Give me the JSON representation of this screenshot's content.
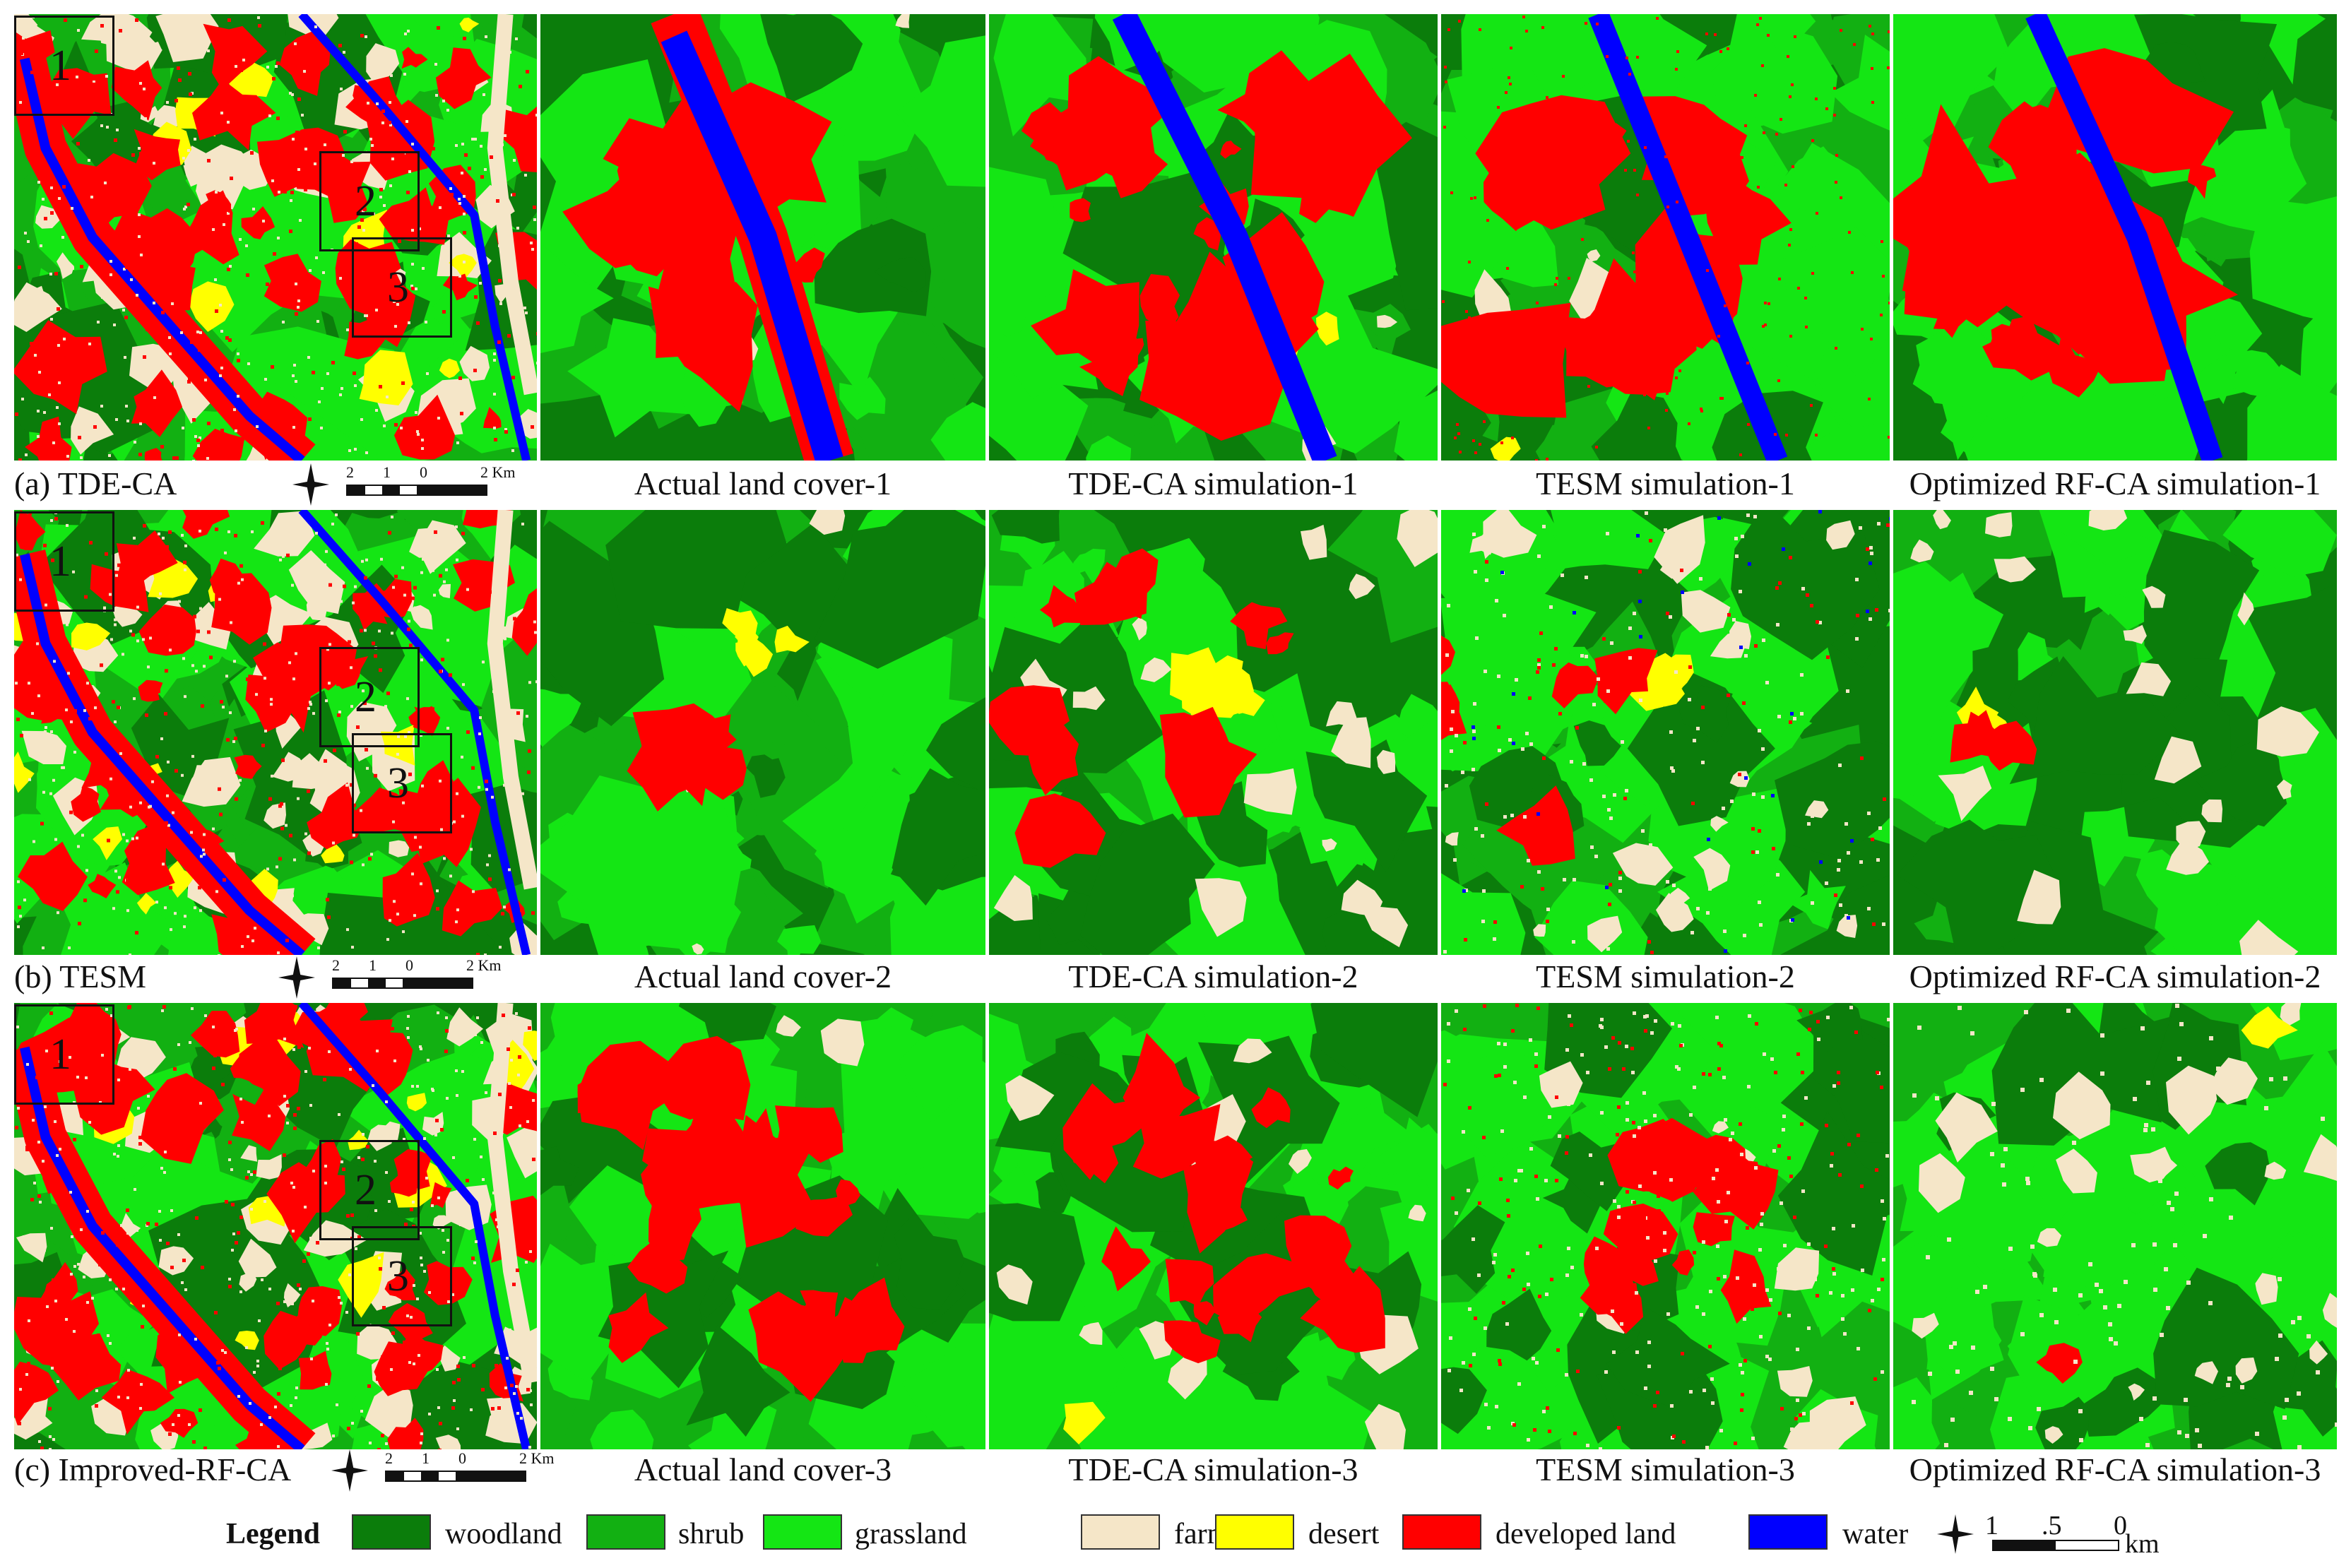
{
  "colors": {
    "woodland": "#0b7d0b",
    "shrub": "#12b012",
    "grassland": "#14e614",
    "farmland": "#f5e6c8",
    "desert": "#ffff00",
    "developed_land": "#ff0000",
    "water": "#0000ff"
  },
  "rows": [
    {
      "overview_caption": "(a) TDE-CA",
      "panels": [
        "Actual land cover-1",
        "TDE-CA simulation-1",
        "TESM simulation-1",
        "Optimized RF-CA simulation-1"
      ]
    },
    {
      "overview_caption": "(b) TESM",
      "panels": [
        "Actual land cover-2",
        "TDE-CA simulation-2",
        "TESM simulation-2",
        "Optimized RF-CA simulation-2"
      ]
    },
    {
      "overview_caption": "(c) Improved-RF-CA",
      "panels": [
        "Actual land cover-3",
        "TDE-CA simulation-3",
        "TESM simulation-3",
        "Optimized RF-CA simulation-3"
      ]
    }
  ],
  "overview_scale": {
    "ticks": [
      "2",
      "1",
      "0",
      "2 Km"
    ],
    "north_label": "N",
    "north_icon": "north-arrow-icon"
  },
  "box_labels": [
    "1",
    "2",
    "3"
  ],
  "legend": {
    "title": "Legend",
    "items": [
      {
        "label": "woodland",
        "color": "#0b7d0b"
      },
      {
        "label": "shrub",
        "color": "#12b012"
      },
      {
        "label": "grassland",
        "color": "#14e614"
      },
      {
        "label": "farmland",
        "color": "#f5e6c8"
      },
      {
        "label": "desert",
        "color": "#ffff00"
      },
      {
        "label": "developed land",
        "color": "#ff0000"
      },
      {
        "label": "water",
        "color": "#0000ff"
      }
    ],
    "scale_ticks": [
      "1",
      ".5",
      "0"
    ],
    "scale_unit": "km"
  }
}
